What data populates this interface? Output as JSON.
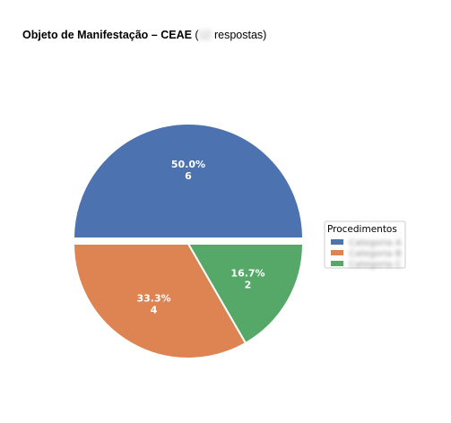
{
  "chart_data": {
    "type": "pie",
    "title": {
      "bold": "Objeto de Manifestação – CEAE",
      "open_paren": " (",
      "count": "12",
      "rest": " respostas)"
    },
    "slices": [
      {
        "name": "Categoria A",
        "value": 6,
        "percent_label": "50.0%",
        "count_label": "6",
        "color": "#4C72B0",
        "explode": true
      },
      {
        "name": "Categoria B",
        "value": 4,
        "percent_label": "33.3%",
        "count_label": "4",
        "color": "#DD8452",
        "explode": false
      },
      {
        "name": "Categoria C",
        "value": 2,
        "percent_label": "16.7%",
        "count_label": "2",
        "color": "#55A868",
        "explode": false
      }
    ],
    "start_angle_deg": 0,
    "direction": "counterclockwise",
    "legend": {
      "title": "Procedimentos",
      "placement": "right"
    }
  }
}
